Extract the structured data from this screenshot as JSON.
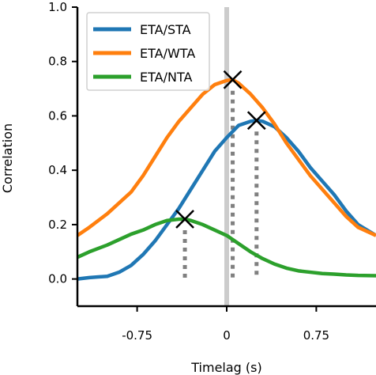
{
  "chart_data": {
    "type": "line",
    "xlabel": "Timelag (s)",
    "ylabel": "Correlation",
    "xlim": [
      -1.25,
      1.25
    ],
    "ylim": [
      -0.1,
      1.0
    ],
    "xticks": [
      -0.75,
      0,
      0.75
    ],
    "xtick_labels": [
      "-0.75",
      "0",
      "0.75"
    ],
    "yticks": [
      0.0,
      0.2,
      0.4,
      0.6,
      0.8,
      1.0
    ],
    "ytick_labels": [
      "0.0",
      "0.2",
      "0.4",
      "0.6",
      "0.8",
      "1.0"
    ],
    "grid": false,
    "legend_position": "top-left",
    "zero_line": {
      "x": 0,
      "color": "#cccccc"
    },
    "series": [
      {
        "name": "ETA/STA",
        "color": "#1f77b4",
        "x": [
          -1.25,
          -1.15,
          -1.0,
          -0.9,
          -0.8,
          -0.7,
          -0.6,
          -0.5,
          -0.4,
          -0.3,
          -0.2,
          -0.1,
          0.0,
          0.1,
          0.2,
          0.25,
          0.3,
          0.4,
          0.5,
          0.6,
          0.7,
          0.8,
          0.9,
          1.0,
          1.1,
          1.25
        ],
        "y": [
          0.0,
          0.005,
          0.01,
          0.025,
          0.05,
          0.09,
          0.14,
          0.2,
          0.26,
          0.33,
          0.4,
          0.47,
          0.52,
          0.565,
          0.58,
          0.583,
          0.58,
          0.56,
          0.52,
          0.47,
          0.41,
          0.36,
          0.31,
          0.25,
          0.2,
          0.16
        ]
      },
      {
        "name": "ETA/WTA",
        "color": "#ff7f0e",
        "x": [
          -1.25,
          -1.15,
          -1.0,
          -0.9,
          -0.8,
          -0.7,
          -0.6,
          -0.5,
          -0.4,
          -0.3,
          -0.2,
          -0.1,
          0.0,
          0.05,
          0.1,
          0.2,
          0.3,
          0.4,
          0.5,
          0.6,
          0.7,
          0.8,
          0.9,
          1.0,
          1.1,
          1.25
        ],
        "y": [
          0.16,
          0.19,
          0.24,
          0.28,
          0.32,
          0.38,
          0.45,
          0.52,
          0.58,
          0.63,
          0.68,
          0.715,
          0.73,
          0.733,
          0.72,
          0.68,
          0.63,
          0.57,
          0.5,
          0.44,
          0.38,
          0.33,
          0.28,
          0.23,
          0.19,
          0.16
        ]
      },
      {
        "name": "ETA/NTA",
        "color": "#2ca02c",
        "x": [
          -1.25,
          -1.15,
          -1.0,
          -0.9,
          -0.8,
          -0.7,
          -0.6,
          -0.5,
          -0.4,
          -0.35,
          -0.3,
          -0.2,
          -0.1,
          0.0,
          0.1,
          0.2,
          0.3,
          0.4,
          0.5,
          0.6,
          0.7,
          0.8,
          0.9,
          1.0,
          1.1,
          1.25
        ],
        "y": [
          0.08,
          0.1,
          0.125,
          0.145,
          0.165,
          0.18,
          0.2,
          0.215,
          0.22,
          0.22,
          0.215,
          0.2,
          0.18,
          0.16,
          0.13,
          0.1,
          0.075,
          0.055,
          0.04,
          0.03,
          0.025,
          0.02,
          0.018,
          0.015,
          0.013,
          0.012
        ]
      }
    ],
    "peaks": [
      {
        "series": "ETA/STA",
        "x": 0.25,
        "y": 0.583,
        "color": "#000000",
        "marker": "x"
      },
      {
        "series": "ETA/WTA",
        "x": 0.05,
        "y": 0.733,
        "color": "#000000",
        "marker": "x"
      },
      {
        "series": "ETA/NTA",
        "x": -0.35,
        "y": 0.22,
        "color": "#000000",
        "marker": "x"
      }
    ],
    "peak_line_color": "#808080"
  }
}
